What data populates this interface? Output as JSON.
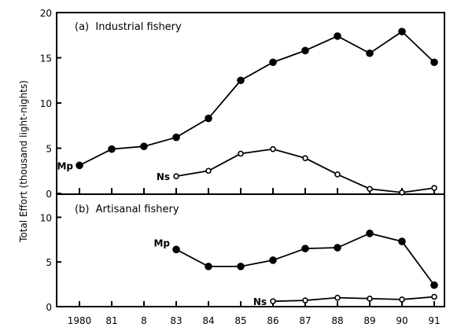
{
  "chart_data": {
    "type": "line",
    "ylabel": "Total Effort (thousand light-nights)",
    "x_tick_labels": [
      "1980",
      "81",
      "8",
      "83",
      "84",
      "85",
      "86",
      "87",
      "88",
      "89",
      "90",
      "91"
    ],
    "x": [
      1980,
      1981,
      1982,
      1983,
      1984,
      1985,
      1986,
      1987,
      1988,
      1989,
      1990,
      1991
    ],
    "panels": [
      {
        "title": "(a)  Industrial fishery",
        "ylim": [
          0,
          20
        ],
        "yticks": [
          0,
          5,
          10,
          15,
          20
        ],
        "series": [
          {
            "name": "Mp",
            "marker": "filled",
            "x": [
              1980,
              1981,
              1982,
              1983,
              1984,
              1985,
              1986,
              1987,
              1988,
              1989,
              1990,
              1991
            ],
            "values": [
              3.1,
              4.9,
              5.2,
              6.2,
              8.3,
              12.5,
              14.5,
              15.8,
              17.4,
              15.5,
              17.9,
              14.5
            ]
          },
          {
            "name": "Ns",
            "marker": "open",
            "x": [
              1983,
              1984,
              1985,
              1986,
              1987,
              1988,
              1989,
              1990,
              1991
            ],
            "values": [
              1.9,
              2.5,
              4.4,
              4.9,
              3.9,
              2.1,
              0.5,
              0.1,
              0.6
            ]
          }
        ]
      },
      {
        "title": "(b)  Artisanal fishery",
        "ylim": [
          0,
          12.5
        ],
        "yticks": [
          0,
          5,
          10
        ],
        "series": [
          {
            "name": "Mp",
            "marker": "filled",
            "x": [
              1983,
              1984,
              1985,
              1986,
              1987,
              1988,
              1989,
              1990,
              1991
            ],
            "values": [
              6.4,
              4.5,
              4.5,
              5.2,
              6.5,
              6.6,
              8.2,
              7.3,
              2.4
            ]
          },
          {
            "name": "Ns",
            "marker": "open",
            "x": [
              1986,
              1987,
              1988,
              1989,
              1990,
              1991
            ],
            "values": [
              0.6,
              0.7,
              1.0,
              0.9,
              0.8,
              1.1
            ]
          }
        ]
      }
    ]
  }
}
